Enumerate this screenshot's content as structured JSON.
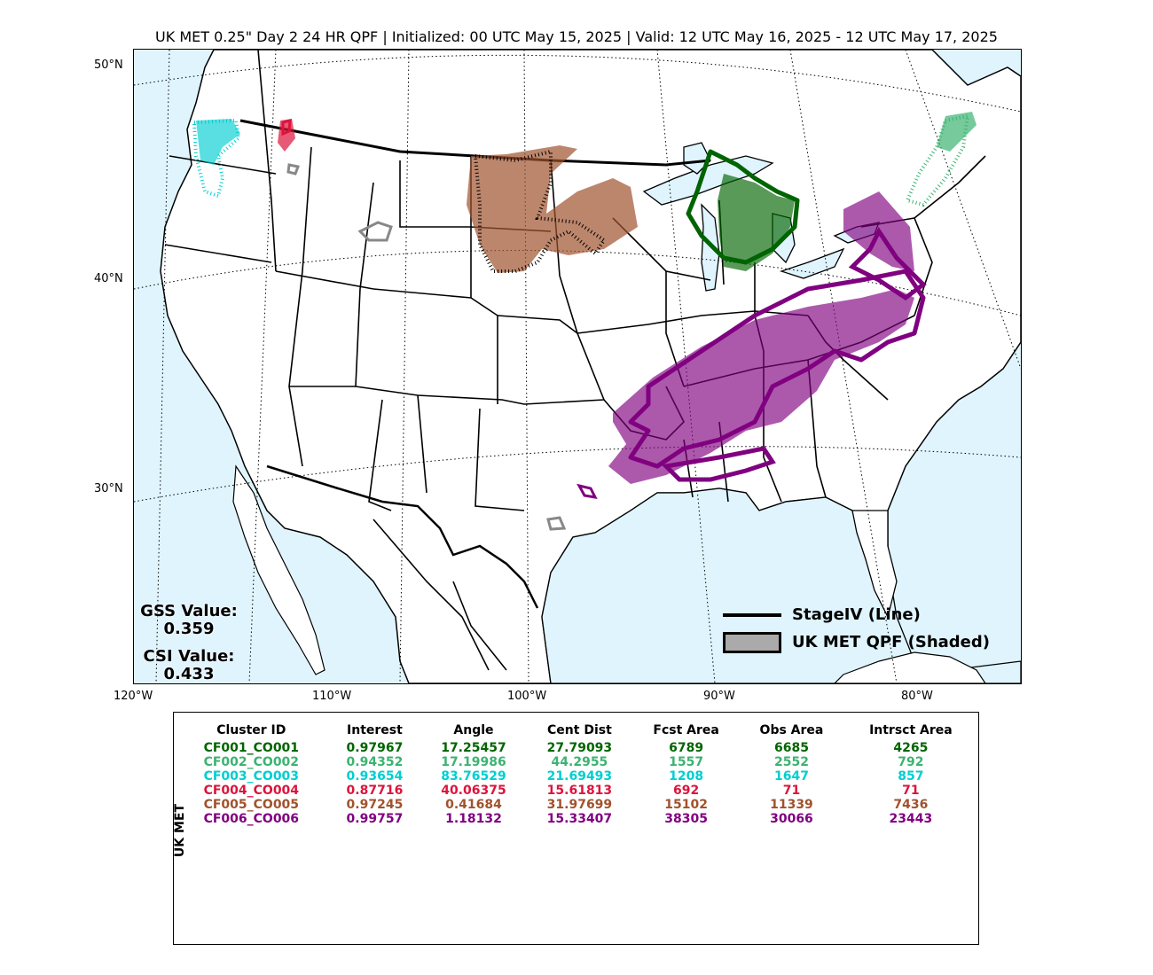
{
  "title": "UK MET 0.25\" Day 2 24 HR QPF | Initialized: 00 UTC May 15, 2025 | Valid: 12 UTC May 16, 2025 - 12 UTC May 17, 2025",
  "lat_labels": [
    "50°N",
    "40°N",
    "30°N"
  ],
  "lon_labels": [
    "120°W",
    "110°W",
    "100°W",
    "90°W",
    "80°W"
  ],
  "scores": {
    "gss_label": "GSS Value:",
    "gss_value": "0.359",
    "csi_label": "CSI Value:",
    "csi_value": "0.433"
  },
  "legend": {
    "line_label": "StageIV (Line)",
    "shaded_label": "UK MET QPF (Shaded)"
  },
  "colors": {
    "ocean": "#dff4fd",
    "land": "#ffffff",
    "CF001": "#006400",
    "CF002": "#3cb371",
    "CF003": "#00ced1",
    "CF004": "#dc143c",
    "CF005": "#a0522d",
    "CF006": "#800080"
  },
  "table": {
    "side_label": "UK MET",
    "headers": [
      "Cluster ID",
      "Interest",
      "Angle",
      "Cent Dist",
      "Fcst Area",
      "Obs Area",
      "Intrsct Area"
    ],
    "rows": [
      {
        "color": "#006400",
        "cells": [
          "CF001_CO001",
          "0.97967",
          "17.25457",
          "27.79093",
          "6789",
          "6685",
          "4265"
        ]
      },
      {
        "color": "#3cb371",
        "cells": [
          "CF002_CO002",
          "0.94352",
          "17.19986",
          "44.2955",
          "1557",
          "2552",
          "792"
        ]
      },
      {
        "color": "#00ced1",
        "cells": [
          "CF003_CO003",
          "0.93654",
          "83.76529",
          "21.69493",
          "1208",
          "1647",
          "857"
        ]
      },
      {
        "color": "#dc143c",
        "cells": [
          "CF004_CO004",
          "0.87716",
          "40.06375",
          "15.61813",
          "692",
          "71",
          "71"
        ]
      },
      {
        "color": "#a0522d",
        "cells": [
          "CF005_CO005",
          "0.97245",
          "0.41684",
          "31.97699",
          "15102",
          "11339",
          "7436"
        ]
      },
      {
        "color": "#800080",
        "cells": [
          "CF006_CO006",
          "0.99757",
          "1.18132",
          "15.33407",
          "38305",
          "30066",
          "23443"
        ]
      }
    ]
  }
}
